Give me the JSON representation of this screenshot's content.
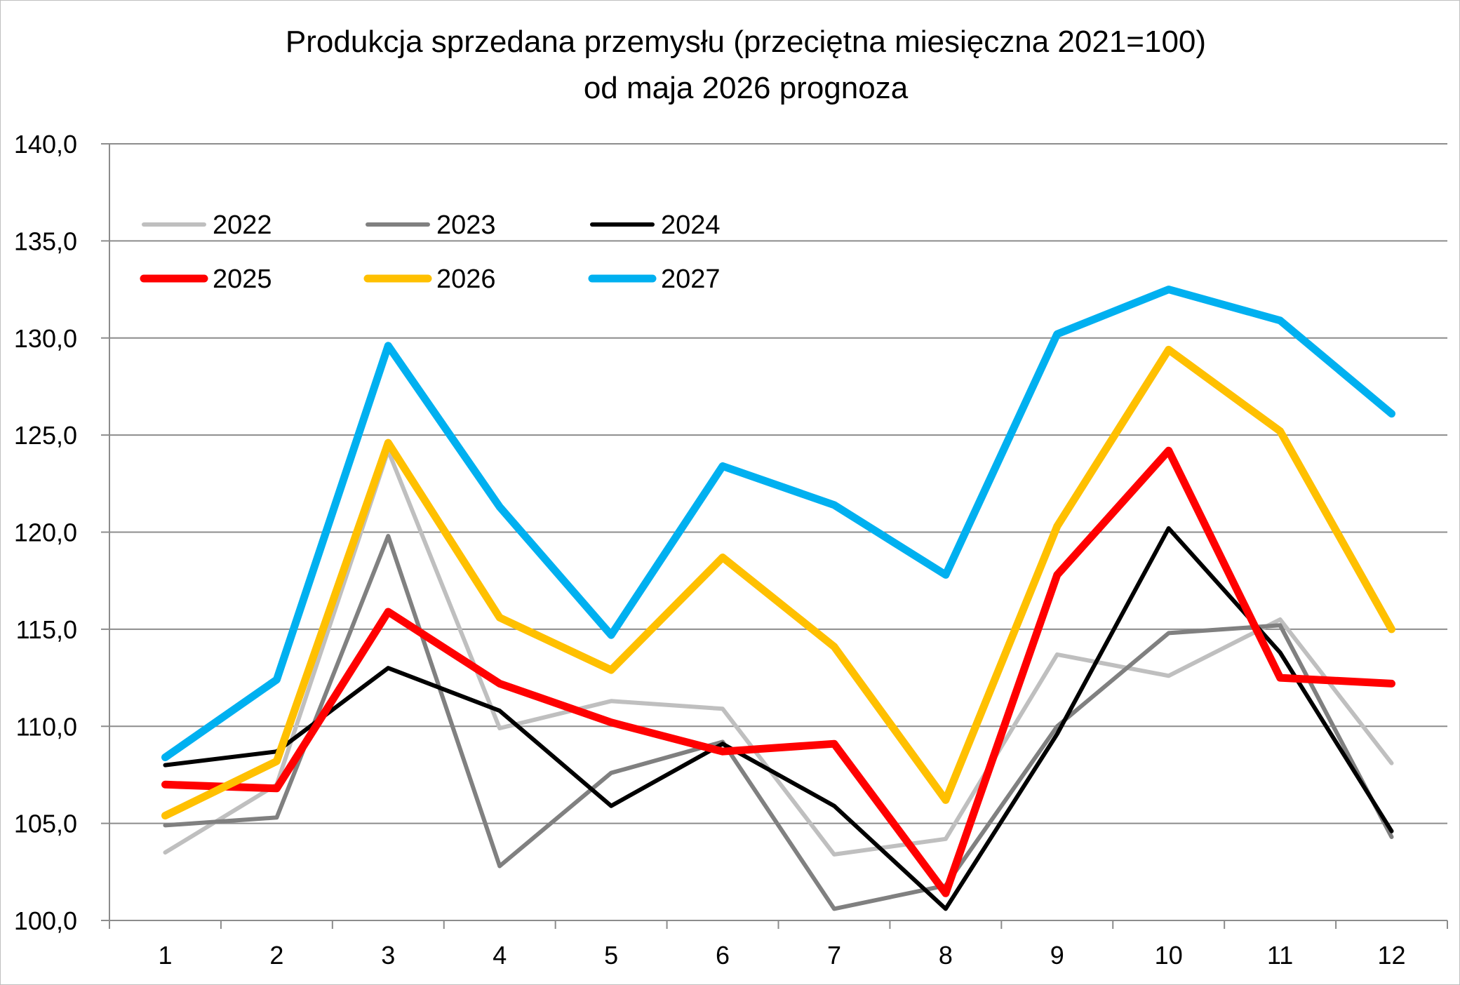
{
  "chart_data": {
    "type": "line",
    "title": "Produkcja sprzedana przemysłu (przeciętna miesięczna 2021=100)",
    "subtitle": "od maja 2026 prognoza",
    "xlabel": "",
    "ylabel": "",
    "categories": [
      "1",
      "2",
      "3",
      "4",
      "5",
      "6",
      "7",
      "8",
      "9",
      "10",
      "11",
      "12"
    ],
    "ylim": [
      100,
      140
    ],
    "yticks": [
      "100,0",
      "105,0",
      "110,0",
      "115,0",
      "120,0",
      "125,0",
      "130,0",
      "135,0",
      "140,0"
    ],
    "grid": true,
    "legend_position": "top-left",
    "series": [
      {
        "name": "2022",
        "color": "#bfbfbf",
        "width": "thin",
        "values": [
          103.5,
          107.0,
          124.2,
          109.9,
          111.3,
          110.9,
          103.4,
          104.2,
          113.7,
          112.6,
          115.5,
          108.1
        ]
      },
      {
        "name": "2023",
        "color": "#808080",
        "width": "thin",
        "values": [
          104.9,
          105.3,
          119.8,
          102.8,
          107.6,
          109.2,
          100.6,
          101.8,
          110.0,
          114.8,
          115.2,
          104.3
        ]
      },
      {
        "name": "2024",
        "color": "#000000",
        "width": "thin",
        "values": [
          108.0,
          108.7,
          113.0,
          110.8,
          105.9,
          109.1,
          105.9,
          100.6,
          109.6,
          120.2,
          113.8,
          104.6
        ]
      },
      {
        "name": "2025",
        "color": "#ff0000",
        "width": "thick",
        "values": [
          107.0,
          106.8,
          115.9,
          112.2,
          110.2,
          108.7,
          109.1,
          101.4,
          117.8,
          124.2,
          112.5,
          112.2
        ]
      },
      {
        "name": "2026",
        "color": "#ffc000",
        "width": "thick",
        "values": [
          105.4,
          108.2,
          124.6,
          115.6,
          112.9,
          118.7,
          114.1,
          106.2,
          120.3,
          129.4,
          125.2,
          115.0
        ]
      },
      {
        "name": "2027",
        "color": "#00b0f0",
        "width": "thick",
        "values": [
          108.4,
          112.4,
          129.6,
          121.3,
          114.7,
          123.4,
          121.4,
          117.8,
          130.2,
          132.5,
          130.9,
          126.1
        ]
      }
    ]
  }
}
